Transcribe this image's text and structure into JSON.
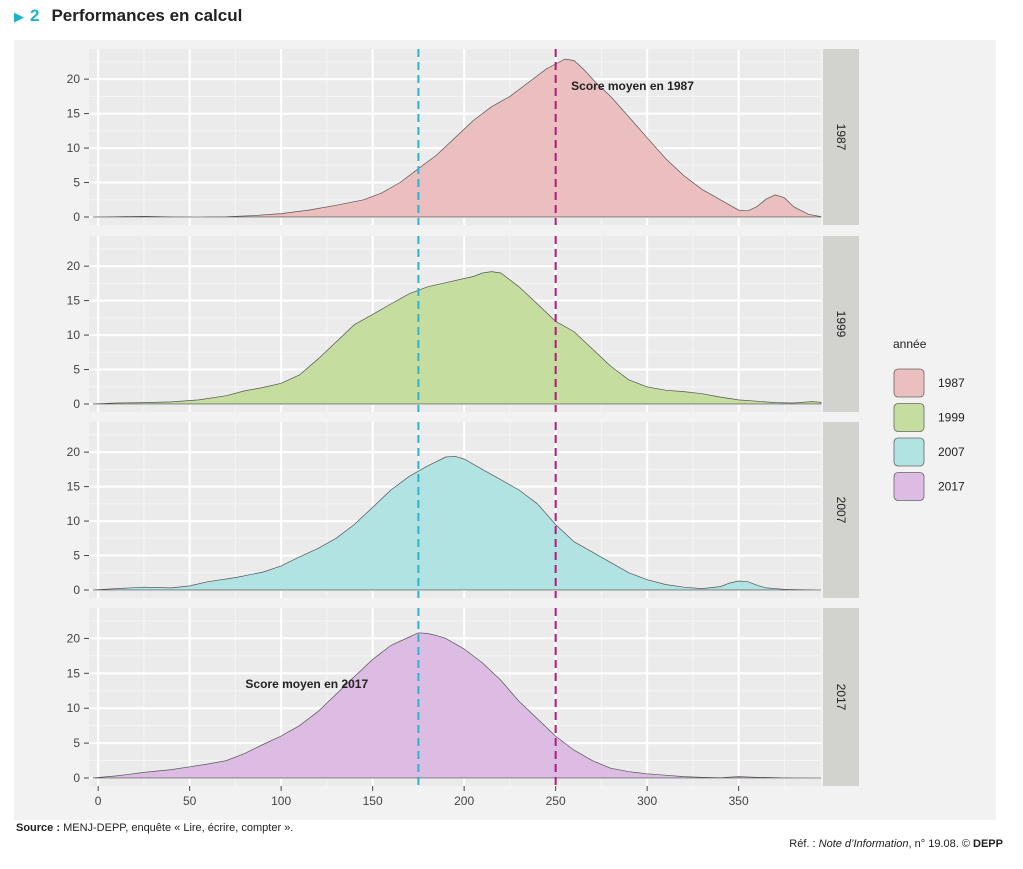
{
  "figure": {
    "number": "2",
    "title": "Performances en calcul"
  },
  "footer": {
    "source_label": "Source :",
    "source_text": "MENJ-DEPP, enquête « Lire, écrire, compter ».",
    "ref_prefix": "Réf. :",
    "ref_publication": "Note d’Information",
    "ref_number": ", n° 19.08. ©",
    "ref_org": "DEPP"
  },
  "chart_data": {
    "type": "area",
    "subtype": "density-facets",
    "x_ticks": [
      0,
      50,
      100,
      150,
      200,
      250,
      300,
      350
    ],
    "y_ticks": [
      0,
      5,
      10,
      15,
      20
    ],
    "xlim": [
      -5,
      395
    ],
    "ylim": [
      0,
      23.5
    ],
    "grid": true,
    "legend": {
      "title": "année",
      "position": "right",
      "entries": [
        "1987",
        "1999",
        "2007",
        "2017"
      ]
    },
    "reference_lines": [
      {
        "x": 175,
        "color": "#2bb4cf",
        "style": "dashed"
      },
      {
        "x": 250,
        "color": "#b5177e",
        "style": "dashed"
      }
    ],
    "annotations": [
      {
        "panel": "1987",
        "text": "Score moyen en 1987",
        "x": 292,
        "y": 19
      },
      {
        "panel": "2017",
        "text": "Score moyen en 2017",
        "x": 114,
        "y": 13.5
      }
    ],
    "series": [
      {
        "name": "1987",
        "fill": "#ebbfbf",
        "x": [
          -3,
          10,
          25,
          40,
          55,
          70,
          85,
          100,
          115,
          130,
          145,
          155,
          165,
          175,
          185,
          195,
          205,
          215,
          225,
          235,
          245,
          250,
          255,
          260,
          265,
          272,
          280,
          290,
          300,
          310,
          320,
          330,
          340,
          350,
          355,
          360,
          365,
          370,
          375,
          380,
          388,
          398,
          420
        ],
        "y": [
          0,
          0.05,
          0.1,
          0.02,
          0,
          0.05,
          0.2,
          0.5,
          1.0,
          1.7,
          2.5,
          3.5,
          5.0,
          7.0,
          9.0,
          11.5,
          14.0,
          16.0,
          17.5,
          19.5,
          21.5,
          22.2,
          22.9,
          22.7,
          21.5,
          19.5,
          17.5,
          14.5,
          11.5,
          8.5,
          6.0,
          4.0,
          2.5,
          1.0,
          0.9,
          1.5,
          2.6,
          3.2,
          2.8,
          1.5,
          0.4,
          0.05,
          0
        ]
      },
      {
        "name": "1999",
        "fill": "#c5dd9f",
        "x": [
          -3,
          10,
          25,
          40,
          55,
          70,
          80,
          90,
          100,
          110,
          120,
          130,
          140,
          150,
          160,
          170,
          180,
          190,
          200,
          205,
          210,
          215,
          220,
          230,
          240,
          250,
          260,
          270,
          280,
          290,
          300,
          310,
          320,
          330,
          340,
          350,
          360,
          370,
          380,
          390,
          400,
          410,
          420
        ],
        "y": [
          0,
          0.15,
          0.2,
          0.3,
          0.6,
          1.2,
          1.9,
          2.4,
          3.0,
          4.2,
          6.5,
          9.0,
          11.5,
          13.0,
          14.5,
          16.0,
          17.0,
          17.6,
          18.2,
          18.5,
          19.0,
          19.2,
          19.0,
          17.0,
          14.5,
          12.0,
          10.5,
          8.0,
          5.5,
          3.5,
          2.5,
          2.0,
          1.8,
          1.5,
          1.0,
          0.6,
          0.4,
          0.2,
          0.15,
          0.35,
          0.25,
          0.1,
          0
        ]
      },
      {
        "name": "2007",
        "fill": "#b2e3e3",
        "x": [
          -3,
          10,
          25,
          40,
          50,
          60,
          75,
          90,
          100,
          110,
          120,
          130,
          140,
          150,
          160,
          170,
          180,
          190,
          195,
          200,
          210,
          220,
          230,
          240,
          250,
          260,
          270,
          280,
          290,
          300,
          310,
          320,
          330,
          340,
          345,
          350,
          355,
          360,
          365,
          375,
          385,
          400
        ],
        "y": [
          0,
          0.2,
          0.4,
          0.3,
          0.6,
          1.2,
          1.8,
          2.6,
          3.5,
          4.8,
          6.0,
          7.5,
          9.5,
          12.0,
          14.5,
          16.5,
          18.0,
          19.3,
          19.4,
          19.0,
          17.5,
          16.0,
          14.5,
          12.5,
          9.5,
          7.0,
          5.5,
          4.0,
          2.5,
          1.5,
          0.8,
          0.4,
          0.2,
          0.5,
          1.0,
          1.3,
          1.2,
          0.7,
          0.3,
          0.1,
          0.05,
          0
        ]
      },
      {
        "name": "2017",
        "fill": "#dcbce3",
        "x": [
          -3,
          10,
          25,
          40,
          50,
          60,
          70,
          80,
          90,
          100,
          110,
          120,
          130,
          140,
          150,
          160,
          170,
          175,
          180,
          185,
          190,
          200,
          210,
          220,
          230,
          240,
          250,
          260,
          270,
          280,
          290,
          300,
          310,
          320,
          330,
          340,
          350,
          360,
          375,
          395
        ],
        "y": [
          0,
          0.3,
          0.8,
          1.2,
          1.6,
          2.0,
          2.5,
          3.5,
          4.8,
          6.0,
          7.5,
          9.5,
          12.0,
          14.5,
          17.0,
          19.0,
          20.2,
          20.8,
          20.7,
          20.4,
          20.0,
          18.5,
          16.5,
          14.0,
          11.0,
          8.5,
          6.0,
          4.0,
          2.5,
          1.4,
          0.9,
          0.6,
          0.4,
          0.2,
          0.1,
          0.05,
          0.2,
          0.1,
          0.02,
          0
        ]
      }
    ]
  }
}
